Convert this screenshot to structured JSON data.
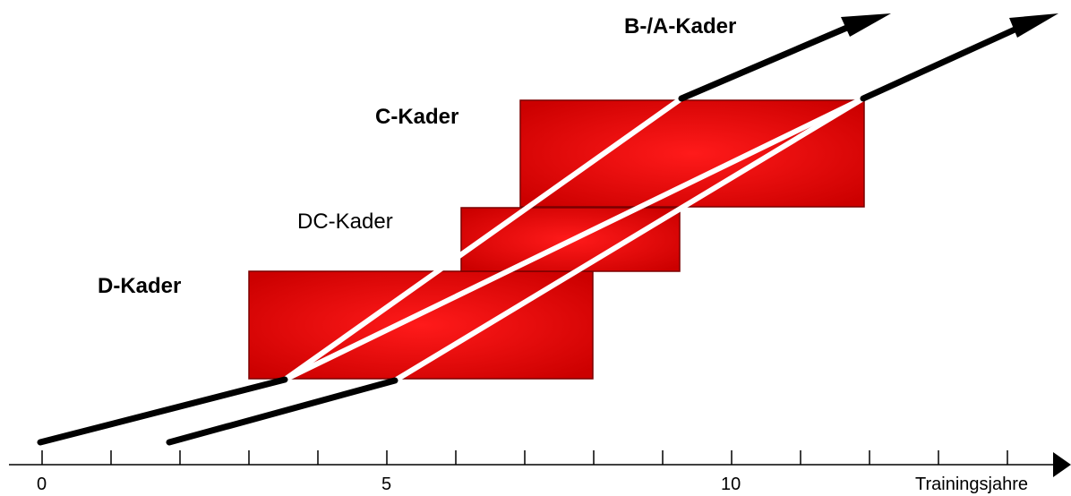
{
  "colors": {
    "box_gradient_center": "#ff1a1a",
    "box_gradient_edge": "#cc0000",
    "path_line": "#ffffff",
    "arrow": "#000000",
    "axis": "#000000"
  },
  "kader_labels": {
    "ba": "B-/A-Kader",
    "c": "C-Kader",
    "dc": "DC-Kader",
    "d": "D-Kader"
  },
  "axis": {
    "label": "Trainingsjahre",
    "tick_labels": {
      "t0": "0",
      "t5": "5",
      "t10": "10"
    }
  }
}
